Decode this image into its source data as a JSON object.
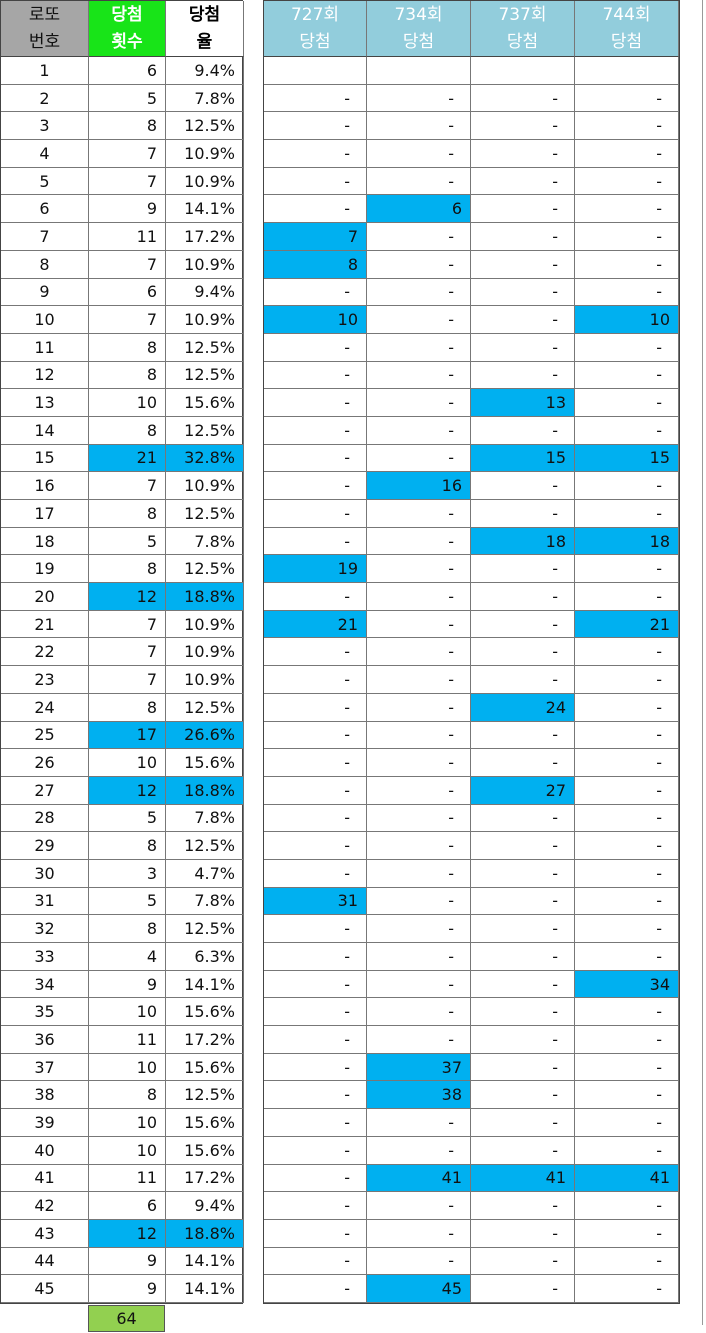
{
  "left_headers": [
    {
      "line1": "로또",
      "line2": "번호"
    },
    {
      "line1": "당첨",
      "line2": "횟수"
    },
    {
      "line1": "당첨",
      "line2": "율"
    }
  ],
  "draw_headers": [
    {
      "line1": "727회",
      "line2": "당첨"
    },
    {
      "line1": "734회",
      "line2": "당첨"
    },
    {
      "line1": "737회",
      "line2": "당첨"
    },
    {
      "line1": "744회",
      "line2": "당첨"
    }
  ],
  "colors": {
    "highlight": "#00b0f0",
    "header_green": "#18e418",
    "header_gray": "#a6a6a6",
    "header_blue": "#92cddc",
    "total_green": "#92d050"
  },
  "rows": [
    {
      "n": "1",
      "count": "6",
      "rate": "9.4%",
      "hl": false,
      "d": [
        "",
        "",
        "",
        ""
      ]
    },
    {
      "n": "2",
      "count": "5",
      "rate": "7.8%",
      "hl": false,
      "d": [
        "-",
        "-",
        "-",
        "-"
      ]
    },
    {
      "n": "3",
      "count": "8",
      "rate": "12.5%",
      "hl": false,
      "d": [
        "-",
        "-",
        "-",
        "-"
      ]
    },
    {
      "n": "4",
      "count": "7",
      "rate": "10.9%",
      "hl": false,
      "d": [
        "-",
        "-",
        "-",
        "-"
      ]
    },
    {
      "n": "5",
      "count": "7",
      "rate": "10.9%",
      "hl": false,
      "d": [
        "-",
        "-",
        "-",
        "-"
      ]
    },
    {
      "n": "6",
      "count": "9",
      "rate": "14.1%",
      "hl": false,
      "d": [
        "-",
        "6",
        "-",
        "-"
      ]
    },
    {
      "n": "7",
      "count": "11",
      "rate": "17.2%",
      "hl": false,
      "d": [
        "7",
        "-",
        "-",
        "-"
      ]
    },
    {
      "n": "8",
      "count": "7",
      "rate": "10.9%",
      "hl": false,
      "d": [
        "8",
        "-",
        "-",
        "-"
      ]
    },
    {
      "n": "9",
      "count": "6",
      "rate": "9.4%",
      "hl": false,
      "d": [
        "-",
        "-",
        "-",
        "-"
      ]
    },
    {
      "n": "10",
      "count": "7",
      "rate": "10.9%",
      "hl": false,
      "d": [
        "10",
        "-",
        "-",
        "10"
      ]
    },
    {
      "n": "11",
      "count": "8",
      "rate": "12.5%",
      "hl": false,
      "d": [
        "-",
        "-",
        "-",
        "-"
      ]
    },
    {
      "n": "12",
      "count": "8",
      "rate": "12.5%",
      "hl": false,
      "d": [
        "-",
        "-",
        "-",
        "-"
      ]
    },
    {
      "n": "13",
      "count": "10",
      "rate": "15.6%",
      "hl": false,
      "d": [
        "-",
        "-",
        "13",
        "-"
      ]
    },
    {
      "n": "14",
      "count": "8",
      "rate": "12.5%",
      "hl": false,
      "d": [
        "-",
        "-",
        "-",
        "-"
      ]
    },
    {
      "n": "15",
      "count": "21",
      "rate": "32.8%",
      "hl": true,
      "d": [
        "-",
        "-",
        "15",
        "15"
      ]
    },
    {
      "n": "16",
      "count": "7",
      "rate": "10.9%",
      "hl": false,
      "d": [
        "-",
        "16",
        "-",
        "-"
      ]
    },
    {
      "n": "17",
      "count": "8",
      "rate": "12.5%",
      "hl": false,
      "d": [
        "-",
        "-",
        "-",
        "-"
      ]
    },
    {
      "n": "18",
      "count": "5",
      "rate": "7.8%",
      "hl": false,
      "d": [
        "-",
        "-",
        "18",
        "18"
      ]
    },
    {
      "n": "19",
      "count": "8",
      "rate": "12.5%",
      "hl": false,
      "d": [
        "19",
        "-",
        "-",
        "-"
      ]
    },
    {
      "n": "20",
      "count": "12",
      "rate": "18.8%",
      "hl": true,
      "d": [
        "-",
        "-",
        "-",
        "-"
      ]
    },
    {
      "n": "21",
      "count": "7",
      "rate": "10.9%",
      "hl": false,
      "d": [
        "21",
        "-",
        "-",
        "21"
      ]
    },
    {
      "n": "22",
      "count": "7",
      "rate": "10.9%",
      "hl": false,
      "d": [
        "-",
        "-",
        "-",
        "-"
      ]
    },
    {
      "n": "23",
      "count": "7",
      "rate": "10.9%",
      "hl": false,
      "d": [
        "-",
        "-",
        "-",
        "-"
      ]
    },
    {
      "n": "24",
      "count": "8",
      "rate": "12.5%",
      "hl": false,
      "d": [
        "-",
        "-",
        "24",
        "-"
      ]
    },
    {
      "n": "25",
      "count": "17",
      "rate": "26.6%",
      "hl": true,
      "d": [
        "-",
        "-",
        "-",
        "-"
      ]
    },
    {
      "n": "26",
      "count": "10",
      "rate": "15.6%",
      "hl": false,
      "d": [
        "-",
        "-",
        "-",
        "-"
      ]
    },
    {
      "n": "27",
      "count": "12",
      "rate": "18.8%",
      "hl": true,
      "d": [
        "-",
        "-",
        "27",
        "-"
      ]
    },
    {
      "n": "28",
      "count": "5",
      "rate": "7.8%",
      "hl": false,
      "d": [
        "-",
        "-",
        "-",
        "-"
      ]
    },
    {
      "n": "29",
      "count": "8",
      "rate": "12.5%",
      "hl": false,
      "d": [
        "-",
        "-",
        "-",
        "-"
      ]
    },
    {
      "n": "30",
      "count": "3",
      "rate": "4.7%",
      "hl": false,
      "d": [
        "-",
        "-",
        "-",
        "-"
      ]
    },
    {
      "n": "31",
      "count": "5",
      "rate": "7.8%",
      "hl": false,
      "d": [
        "31",
        "-",
        "-",
        "-"
      ]
    },
    {
      "n": "32",
      "count": "8",
      "rate": "12.5%",
      "hl": false,
      "d": [
        "-",
        "-",
        "-",
        "-"
      ]
    },
    {
      "n": "33",
      "count": "4",
      "rate": "6.3%",
      "hl": false,
      "d": [
        "-",
        "-",
        "-",
        "-"
      ]
    },
    {
      "n": "34",
      "count": "9",
      "rate": "14.1%",
      "hl": false,
      "d": [
        "-",
        "-",
        "-",
        "34"
      ]
    },
    {
      "n": "35",
      "count": "10",
      "rate": "15.6%",
      "hl": false,
      "d": [
        "-",
        "-",
        "-",
        "-"
      ]
    },
    {
      "n": "36",
      "count": "11",
      "rate": "17.2%",
      "hl": false,
      "d": [
        "-",
        "-",
        "-",
        "-"
      ]
    },
    {
      "n": "37",
      "count": "10",
      "rate": "15.6%",
      "hl": false,
      "d": [
        "-",
        "37",
        "-",
        "-"
      ]
    },
    {
      "n": "38",
      "count": "8",
      "rate": "12.5%",
      "hl": false,
      "d": [
        "-",
        "38",
        "-",
        "-"
      ]
    },
    {
      "n": "39",
      "count": "10",
      "rate": "15.6%",
      "hl": false,
      "d": [
        "-",
        "-",
        "-",
        "-"
      ]
    },
    {
      "n": "40",
      "count": "10",
      "rate": "15.6%",
      "hl": false,
      "d": [
        "-",
        "-",
        "-",
        "-"
      ]
    },
    {
      "n": "41",
      "count": "11",
      "rate": "17.2%",
      "hl": false,
      "d": [
        "-",
        "41",
        "41",
        "41"
      ]
    },
    {
      "n": "42",
      "count": "6",
      "rate": "9.4%",
      "hl": false,
      "d": [
        "-",
        "-",
        "-",
        "-"
      ]
    },
    {
      "n": "43",
      "count": "12",
      "rate": "18.8%",
      "hl": true,
      "d": [
        "-",
        "-",
        "-",
        "-"
      ]
    },
    {
      "n": "44",
      "count": "9",
      "rate": "14.1%",
      "hl": false,
      "d": [
        "-",
        "-",
        "-",
        "-"
      ]
    },
    {
      "n": "45",
      "count": "9",
      "rate": "14.1%",
      "hl": false,
      "d": [
        "-",
        "45",
        "-",
        "-"
      ]
    }
  ],
  "total": "64"
}
